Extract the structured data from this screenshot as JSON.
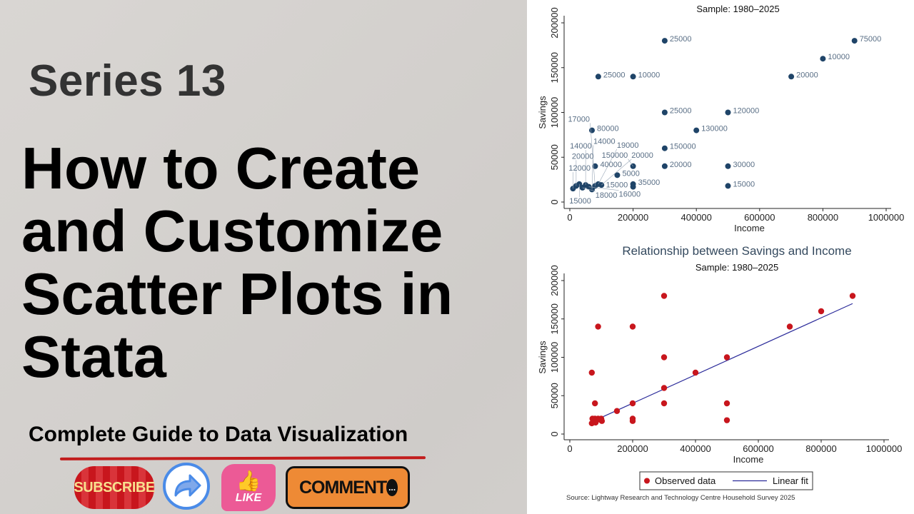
{
  "thumbnail": {
    "series_label": "Series 13",
    "title_lines": [
      "How to Create",
      "and Customize",
      "Scatter Plots in",
      "Stata"
    ],
    "subtitle": "Complete Guide to Data Visualization",
    "buttons": {
      "subscribe": "SUBSCRIBE",
      "share_icon": "share-arrow-icon",
      "like": "LIKE",
      "like_icon": "thumbs-up-icon",
      "comment": "COMMENT",
      "comment_icon": "chat-bubble-icon",
      "comment_dots": "..."
    },
    "colors": {
      "accent_red": "#c21d1d",
      "share_blue": "#4a8be8",
      "like_pink": "#ec5a96",
      "comment_orange": "#ee8a35"
    }
  },
  "chart_data": [
    {
      "type": "scatter",
      "title": "",
      "subtitle": "Sample: 1980–2025",
      "xlabel": "Income",
      "ylabel": "Savings",
      "xlim": [
        0,
        1000000
      ],
      "ylim": [
        0,
        200000
      ],
      "xticks": [
        "0",
        "200000",
        "400000",
        "600000",
        "800000",
        "1000000"
      ],
      "yticks": [
        "0",
        "50000",
        "100000",
        "150000",
        "200000"
      ],
      "marker_color": "#1f4468",
      "label_color": "#5a6f86",
      "points": [
        {
          "x": 300000,
          "y": 180000,
          "label": "25000"
        },
        {
          "x": 900000,
          "y": 180000,
          "label": "75000"
        },
        {
          "x": 800000,
          "y": 160000,
          "label": "10000"
        },
        {
          "x": 700000,
          "y": 140000,
          "label": "20000"
        },
        {
          "x": 90000,
          "y": 140000,
          "label": "25000"
        },
        {
          "x": 200000,
          "y": 140000,
          "label": "10000"
        },
        {
          "x": 300000,
          "y": 100000,
          "label": "25000"
        },
        {
          "x": 500000,
          "y": 100000,
          "label": "120000"
        },
        {
          "x": 70000,
          "y": 80000,
          "label": "80000"
        },
        {
          "x": 400000,
          "y": 80000,
          "label": "130000"
        },
        {
          "x": 300000,
          "y": 60000,
          "label": "150000"
        },
        {
          "x": 80000,
          "y": 40000,
          "label": "40000"
        },
        {
          "x": 200000,
          "y": 40000,
          "label": "150000"
        },
        {
          "x": 300000,
          "y": 40000,
          "label": "20000"
        },
        {
          "x": 500000,
          "y": 40000,
          "label": "30000"
        },
        {
          "x": 150000,
          "y": 30000,
          "label": "5000"
        },
        {
          "x": 200000,
          "y": 20000,
          "label": "35000"
        },
        {
          "x": 200000,
          "y": 17000,
          "label": "15000"
        },
        {
          "x": 500000,
          "y": 18000,
          "label": "15000"
        },
        {
          "x": 10000,
          "y": 15000,
          "label": "12000"
        },
        {
          "x": 20000,
          "y": 18000,
          "label": "20000"
        },
        {
          "x": 30000,
          "y": 20000,
          "label": "15000"
        },
        {
          "x": 40000,
          "y": 16000,
          "label": "18000"
        },
        {
          "x": 50000,
          "y": 19000,
          "label": "14000"
        },
        {
          "x": 60000,
          "y": 17000,
          "label": "16000"
        },
        {
          "x": 70000,
          "y": 14000,
          "label": "14000"
        },
        {
          "x": 80000,
          "y": 18000,
          "label": "17000"
        },
        {
          "x": 90000,
          "y": 20000,
          "label": "19000"
        },
        {
          "x": 100000,
          "y": 19000,
          "label": "20000"
        }
      ]
    },
    {
      "type": "scatter",
      "title": "Relationship between Savings and Income",
      "subtitle": "Sample: 1980–2025",
      "xlabel": "Income",
      "ylabel": "Savings",
      "xlim": [
        0,
        1000000
      ],
      "ylim": [
        0,
        200000
      ],
      "xticks": [
        "0",
        "200000",
        "400000",
        "600000",
        "800000",
        "1000000"
      ],
      "yticks": [
        "0",
        "50000",
        "100000",
        "150000",
        "200000"
      ],
      "legend": {
        "position": "bottom",
        "entries": [
          "Observed data",
          "Linear fit"
        ]
      },
      "note": "Source: Lightway Research and Technology Centre Household Survey 2025",
      "marker_color": "#c8161d",
      "fit_color": "#2b2b9a",
      "series": [
        {
          "name": "Observed data",
          "points": [
            [
              70000,
              80000
            ],
            [
              80000,
              40000
            ],
            [
              90000,
              140000
            ],
            [
              200000,
              140000
            ],
            [
              300000,
              180000
            ],
            [
              300000,
              100000
            ],
            [
              300000,
              60000
            ],
            [
              300000,
              40000
            ],
            [
              150000,
              30000
            ],
            [
              200000,
              40000
            ],
            [
              200000,
              20000
            ],
            [
              200000,
              17000
            ],
            [
              400000,
              80000
            ],
            [
              500000,
              100000
            ],
            [
              500000,
              40000
            ],
            [
              500000,
              18000
            ],
            [
              700000,
              140000
            ],
            [
              800000,
              160000
            ],
            [
              900000,
              180000
            ],
            [
              70000,
              14000
            ],
            [
              72000,
              20000
            ],
            [
              76000,
              17000
            ],
            [
              80000,
              20000
            ],
            [
              85000,
              18000
            ],
            [
              90000,
              20000
            ],
            [
              95000,
              19000
            ],
            [
              100000,
              20000
            ],
            [
              102000,
              17000
            ],
            [
              82000,
              15000
            ]
          ]
        },
        {
          "name": "Linear fit",
          "line": [
            [
              70000,
              16000
            ],
            [
              900000,
              170000
            ]
          ]
        }
      ]
    }
  ]
}
